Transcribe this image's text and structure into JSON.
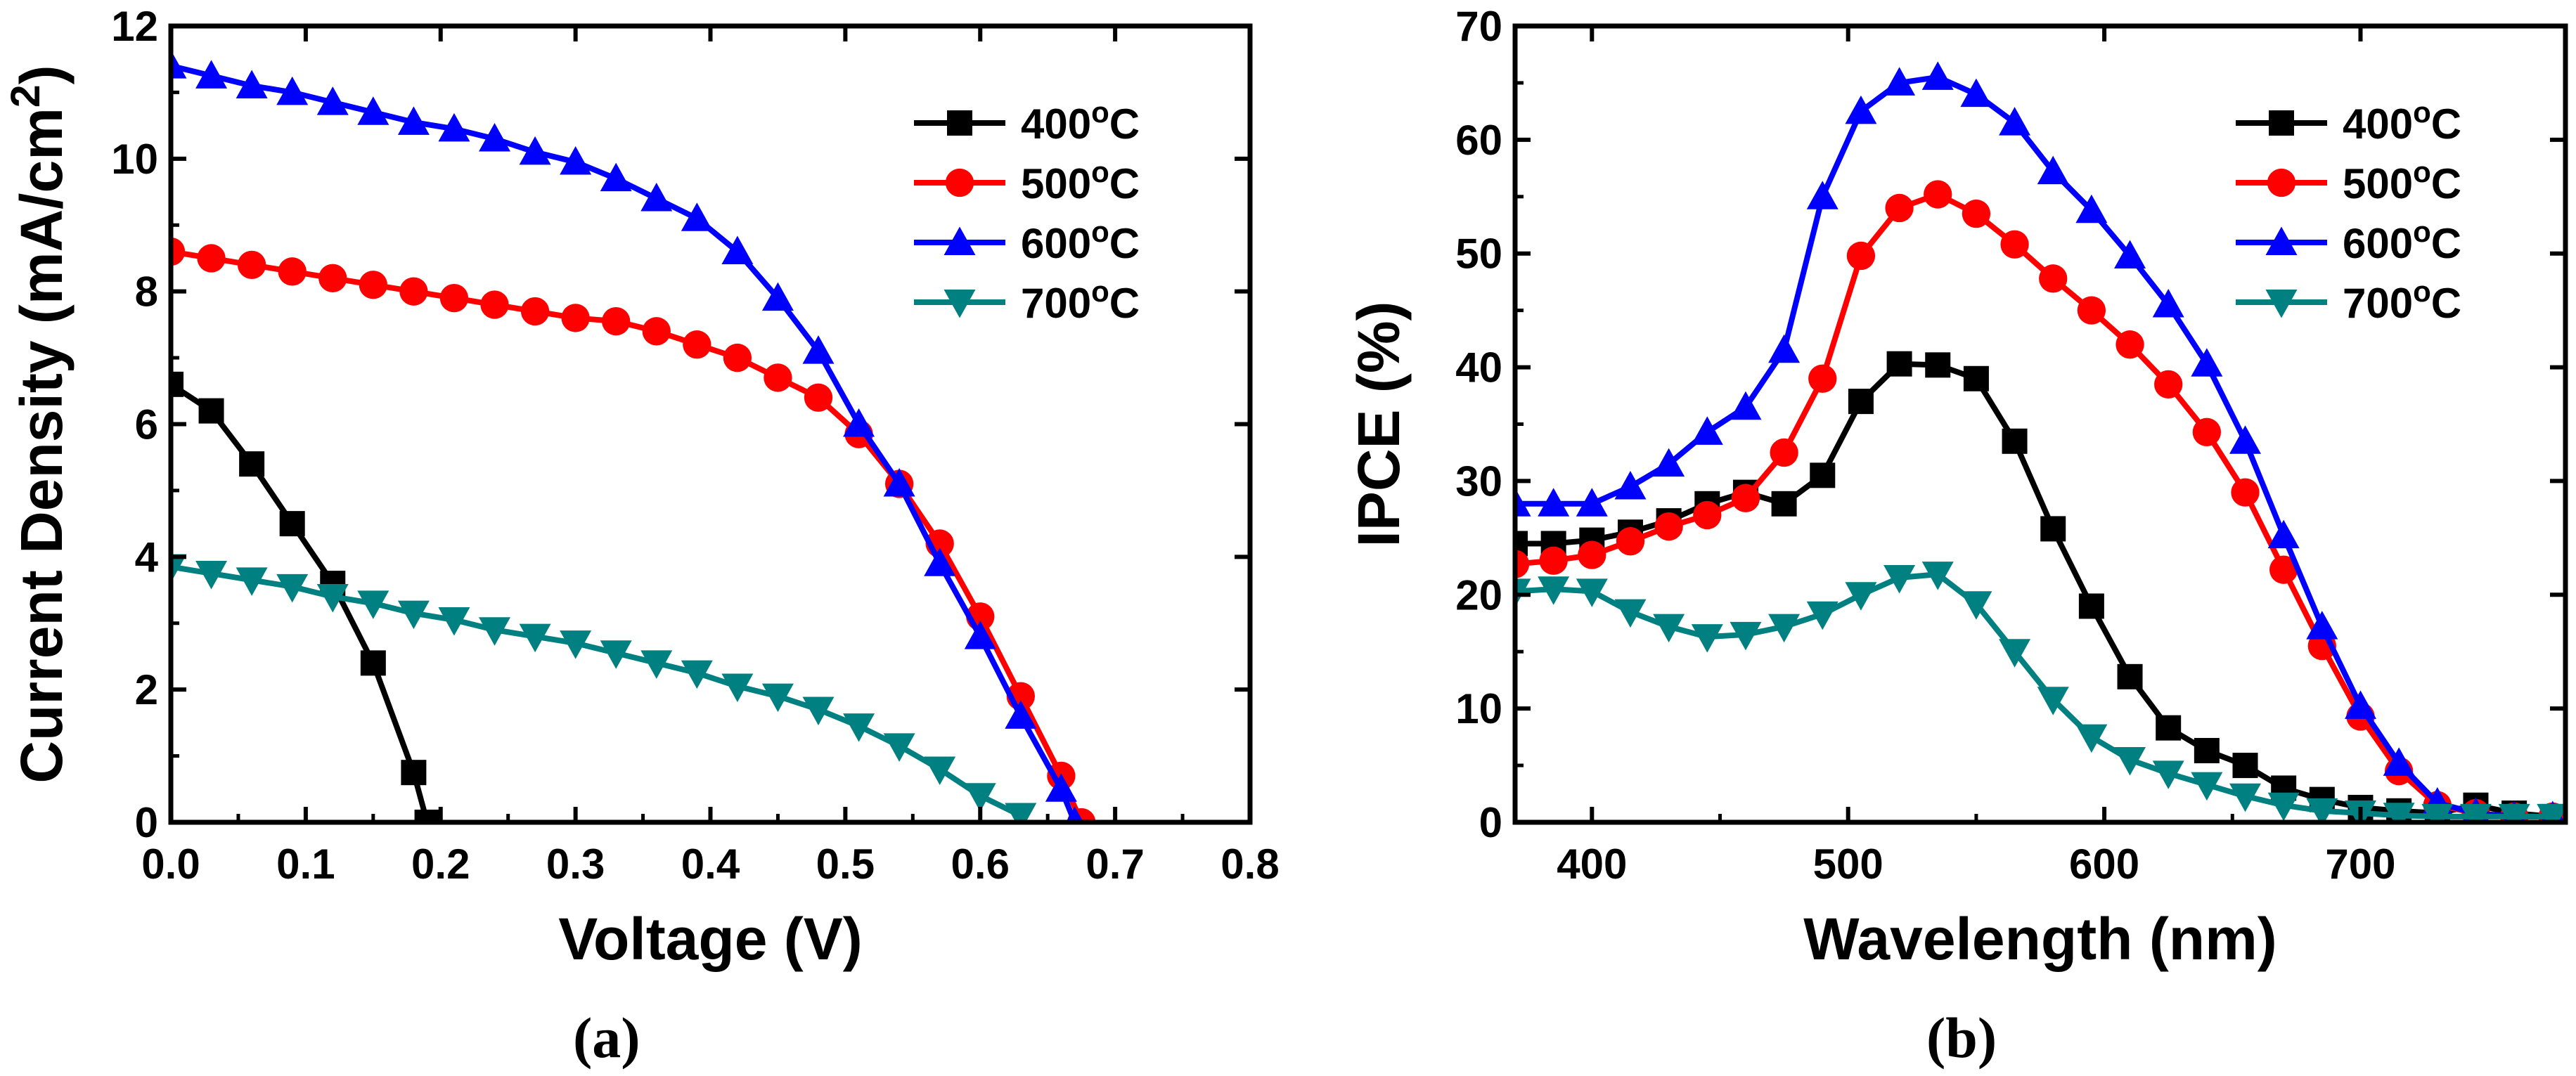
{
  "chart_data": [
    {
      "type": "line",
      "panel_label": "(a)",
      "title": "",
      "xlabel": "Voltage (V)",
      "ylabel_main": "Current Density (mA/cm",
      "ylabel_sup": "2",
      "ylabel_close": ")",
      "xlim": [
        0.0,
        0.8
      ],
      "ylim": [
        0,
        12
      ],
      "xticks": [
        0.0,
        0.1,
        0.2,
        0.3,
        0.4,
        0.5,
        0.6,
        0.7,
        0.8
      ],
      "xtick_labels": [
        "0.0",
        "0.1",
        "0.2",
        "0.3",
        "0.4",
        "0.5",
        "0.6",
        "0.7",
        "0.8"
      ],
      "yticks": [
        0,
        2,
        4,
        6,
        8,
        10,
        12
      ],
      "ytick_labels": [
        "0",
        "2",
        "4",
        "6",
        "8",
        "10",
        "12"
      ],
      "legend_position": "top-right",
      "series": [
        {
          "name": "400°C",
          "label_main": "400",
          "label_sup": "o",
          "label_unit": "C",
          "color": "#000000",
          "marker": "square",
          "x": [
            0.0,
            0.03,
            0.06,
            0.09,
            0.12,
            0.15,
            0.18,
            0.19
          ],
          "y": [
            6.6,
            6.2,
            5.4,
            4.5,
            3.6,
            2.4,
            0.75,
            0.0
          ]
        },
        {
          "name": "500°C",
          "label_main": "500",
          "label_sup": "o",
          "label_unit": "C",
          "color": "#ff0000",
          "marker": "circle",
          "x": [
            0.0,
            0.03,
            0.06,
            0.09,
            0.12,
            0.15,
            0.18,
            0.21,
            0.24,
            0.27,
            0.3,
            0.33,
            0.36,
            0.39,
            0.42,
            0.45,
            0.48,
            0.51,
            0.54,
            0.57,
            0.6,
            0.63,
            0.66,
            0.675
          ],
          "y": [
            8.6,
            8.5,
            8.4,
            8.3,
            8.2,
            8.1,
            8.0,
            7.9,
            7.8,
            7.7,
            7.6,
            7.55,
            7.4,
            7.2,
            7.0,
            6.7,
            6.4,
            5.85,
            5.1,
            4.2,
            3.1,
            1.9,
            0.7,
            0.0
          ]
        },
        {
          "name": "600°C",
          "label_main": "600",
          "label_sup": "o",
          "label_unit": "C",
          "color": "#0000ff",
          "marker": "triangle-up",
          "x": [
            0.0,
            0.03,
            0.06,
            0.09,
            0.12,
            0.15,
            0.18,
            0.21,
            0.24,
            0.27,
            0.3,
            0.33,
            0.36,
            0.39,
            0.42,
            0.45,
            0.48,
            0.51,
            0.54,
            0.57,
            0.6,
            0.63,
            0.66,
            0.67
          ],
          "y": [
            11.4,
            11.25,
            11.1,
            11.0,
            10.85,
            10.7,
            10.55,
            10.45,
            10.3,
            10.1,
            9.95,
            9.7,
            9.4,
            9.1,
            8.6,
            7.9,
            7.1,
            6.0,
            5.1,
            3.9,
            2.8,
            1.6,
            0.5,
            0.0
          ]
        },
        {
          "name": "700°C",
          "label_main": "700",
          "label_sup": "o",
          "label_unit": "C",
          "color": "#008080",
          "marker": "triangle-down",
          "x": [
            0.0,
            0.03,
            0.06,
            0.09,
            0.12,
            0.15,
            0.18,
            0.21,
            0.24,
            0.27,
            0.3,
            0.33,
            0.36,
            0.39,
            0.42,
            0.45,
            0.48,
            0.51,
            0.54,
            0.57,
            0.6,
            0.63
          ],
          "y": [
            3.85,
            3.75,
            3.65,
            3.55,
            3.4,
            3.3,
            3.15,
            3.05,
            2.9,
            2.8,
            2.7,
            2.55,
            2.4,
            2.25,
            2.05,
            1.9,
            1.7,
            1.45,
            1.15,
            0.8,
            0.4,
            0.1
          ]
        }
      ]
    },
    {
      "type": "line",
      "panel_label": "(b)",
      "title": "",
      "xlabel": "Wavelength (nm)",
      "ylabel_main": "IPCE (%)",
      "xlim": [
        370,
        780
      ],
      "ylim": [
        0,
        70
      ],
      "xticks": [
        400,
        500,
        600,
        700
      ],
      "xtick_labels": [
        "400",
        "500",
        "600",
        "700"
      ],
      "yticks": [
        0,
        10,
        20,
        30,
        40,
        50,
        60,
        70
      ],
      "ytick_labels": [
        "0",
        "10",
        "20",
        "30",
        "40",
        "50",
        "60",
        "70"
      ],
      "legend_position": "top-right",
      "series": [
        {
          "name": "400°C",
          "label_main": "400",
          "label_sup": "o",
          "label_unit": "C",
          "color": "#000000",
          "marker": "square",
          "x": [
            370,
            385,
            400,
            415,
            430,
            445,
            460,
            475,
            490,
            505,
            520,
            535,
            550,
            565,
            580,
            595,
            610,
            625,
            640,
            655,
            670,
            685,
            700,
            715,
            730,
            745,
            760,
            775
          ],
          "y": [
            24.5,
            24.5,
            24.8,
            25.5,
            26.5,
            28.0,
            29.0,
            28.0,
            30.5,
            37.0,
            40.3,
            40.2,
            39.0,
            33.5,
            25.8,
            19.0,
            12.8,
            8.3,
            6.3,
            5.0,
            3.0,
            2.0,
            1.3,
            1.0,
            0.8,
            1.5,
            0.8,
            0.5
          ]
        },
        {
          "name": "500°C",
          "label_main": "500",
          "label_sup": "o",
          "label_unit": "C",
          "color": "#ff0000",
          "marker": "circle",
          "x": [
            370,
            385,
            400,
            415,
            430,
            445,
            460,
            475,
            490,
            505,
            520,
            535,
            550,
            565,
            580,
            595,
            610,
            625,
            640,
            655,
            670,
            685,
            700,
            715,
            730,
            745,
            760,
            775
          ],
          "y": [
            22.7,
            23.0,
            23.5,
            24.7,
            26.0,
            27.0,
            28.5,
            32.5,
            39.0,
            49.8,
            54.0,
            55.2,
            53.5,
            50.8,
            47.8,
            45.0,
            42.0,
            38.5,
            34.3,
            29.0,
            22.2,
            15.5,
            9.3,
            4.5,
            1.5,
            0.8,
            0.5,
            0.5
          ]
        },
        {
          "name": "600°C",
          "label_main": "600",
          "label_sup": "o",
          "label_unit": "C",
          "color": "#0000ff",
          "marker": "triangle-up",
          "x": [
            370,
            385,
            400,
            415,
            430,
            445,
            460,
            475,
            490,
            505,
            520,
            535,
            550,
            565,
            580,
            595,
            610,
            625,
            640,
            655,
            670,
            685,
            700,
            715,
            730,
            745,
            760,
            775
          ],
          "y": [
            28.0,
            28.0,
            28.0,
            29.5,
            31.5,
            34.3,
            36.5,
            41.5,
            55.0,
            62.5,
            65.0,
            65.5,
            64.0,
            61.5,
            57.2,
            53.8,
            49.8,
            45.5,
            40.3,
            33.5,
            25.2,
            17.2,
            10.2,
            5.2,
            1.7,
            0.8,
            0.5,
            0.5
          ]
        },
        {
          "name": "700°C",
          "label_main": "700",
          "label_sup": "o",
          "label_unit": "C",
          "color": "#008080",
          "marker": "triangle-down",
          "x": [
            370,
            385,
            400,
            415,
            430,
            445,
            460,
            475,
            490,
            505,
            520,
            535,
            550,
            565,
            580,
            595,
            610,
            625,
            640,
            655,
            670,
            685,
            700,
            715,
            730,
            745,
            760,
            775
          ],
          "y": [
            20.3,
            20.5,
            20.3,
            18.5,
            17.2,
            16.3,
            16.5,
            17.2,
            18.3,
            20.0,
            21.5,
            21.8,
            19.2,
            15.0,
            10.8,
            7.5,
            5.5,
            4.3,
            3.3,
            2.3,
            1.5,
            1.0,
            0.8,
            0.6,
            0.5,
            0.5,
            0.5,
            0.5
          ]
        }
      ]
    }
  ]
}
